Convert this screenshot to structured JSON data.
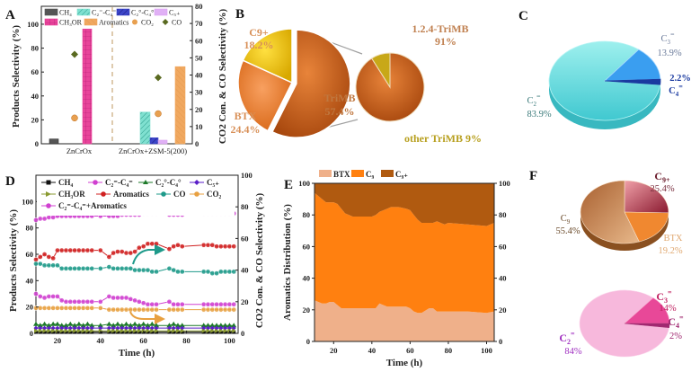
{
  "panels": {
    "A": "A",
    "B": "B",
    "C": "C",
    "D": "D",
    "E": "E",
    "F": "F"
  },
  "chart_data": [
    {
      "id": "A",
      "type": "bar",
      "categories": [
        "ZnCrOx",
        "ZnCrOx+ZSM-5(200)"
      ],
      "ylabel": "Products Selectivity (%)",
      "y2label": "CO2 Con. & CO Selectivity (%)",
      "ylim": [
        0,
        115
      ],
      "y2lim": [
        0,
        80
      ],
      "yticks": [
        "0",
        "20",
        "40",
        "60",
        "80",
        "100"
      ],
      "y2ticks": [
        "0",
        "10",
        "20",
        "30",
        "40",
        "50",
        "60",
        "70",
        "80"
      ],
      "series": [
        {
          "name": "CH4",
          "color": "#555555",
          "values": [
            4,
            0
          ]
        },
        {
          "name": "C2=-C4=",
          "color": "#7fe0d0",
          "values": [
            0,
            26.5
          ]
        },
        {
          "name": "C2°-C4°",
          "color": "#3b45c8",
          "values": [
            0,
            5
          ]
        },
        {
          "name": "C5+",
          "color": "#d9a0f0",
          "values": [
            0,
            3
          ]
        },
        {
          "name": "CH3OR",
          "color": "#e8449a",
          "values": [
            96,
            0
          ]
        },
        {
          "name": "Aromatics",
          "color": "#f0a860",
          "values": [
            0,
            64.5
          ]
        }
      ],
      "scatter_series": [
        {
          "name": "CO2",
          "color": "#e8a050",
          "axis": "right",
          "values": [
            15,
            17.5
          ]
        },
        {
          "name": "CO",
          "color": "#5a6a20",
          "axis": "right",
          "values": [
            52,
            38.5
          ]
        }
      ],
      "legend": [
        "CH4",
        "C2=-C4=",
        "C2°-C4°",
        "C5+",
        "CH3OR",
        "Aromatics",
        "CO2",
        "CO"
      ]
    },
    {
      "id": "B",
      "type": "pie",
      "title": "",
      "slices": [
        {
          "label": "TriMB",
          "value": 57.4,
          "text": "57.4%",
          "color": "#d2691e"
        },
        {
          "label": "BTX",
          "value": 24.4,
          "text": "24.4%",
          "color": "#f08838"
        },
        {
          "label": "C9+",
          "value": 18.2,
          "text": "18.2%",
          "color": "#e8c020"
        }
      ],
      "sub_pie": {
        "of": "TriMB",
        "slices": [
          {
            "label": "1.2.4-TriMB",
            "value": 91,
            "text": "91%",
            "color": "#d2691e"
          },
          {
            "label": "other TriMB",
            "value": 9,
            "text": "9%",
            "color": "#c8a818"
          }
        ]
      }
    },
    {
      "id": "C",
      "type": "pie",
      "slices": [
        {
          "label": "C2=",
          "value": 83.9,
          "text": "83.9%",
          "color": "#5fd8d8"
        },
        {
          "label": "C3=",
          "value": 13.9,
          "text": "13.9%",
          "color": "#3a9ef0"
        },
        {
          "label": "C4=",
          "value": 2.2,
          "text": "2.2%",
          "color": "#1a3aa0"
        }
      ]
    },
    {
      "id": "D",
      "type": "line",
      "xlabel": "Time (h)",
      "ylabel": "Products Selectivity (%)",
      "y2label": "CO2 Con. & CO Selectivity (%)",
      "xlim": [
        10,
        104
      ],
      "ylim": [
        0,
        120
      ],
      "y2lim": [
        0,
        100
      ],
      "xticks": [
        "20",
        "40",
        "60",
        "80",
        "100"
      ],
      "yticks": [
        "0",
        "20",
        "40",
        "60",
        "80",
        "100"
      ],
      "y2ticks": [
        "0",
        "20",
        "40",
        "60",
        "80",
        "100"
      ],
      "x": [
        10,
        12,
        14,
        16,
        18,
        20,
        22,
        24,
        26,
        28,
        30,
        32,
        34,
        36,
        40,
        44,
        46,
        48,
        50,
        52,
        54,
        56,
        58,
        60,
        62,
        64,
        66,
        72,
        74,
        76,
        78,
        88,
        90,
        92,
        94,
        96,
        98,
        100,
        102
      ],
      "series": [
        {
          "name": "CH4",
          "color": "#111111",
          "marker": "square",
          "values": [
            1,
            1,
            1,
            1,
            1,
            1,
            1,
            1,
            1,
            1,
            1,
            1,
            1,
            1,
            1,
            1,
            1,
            1,
            1,
            1,
            1,
            1,
            1,
            1,
            1,
            1,
            1,
            1,
            1,
            1,
            1,
            1,
            1,
            1,
            1,
            1,
            1,
            1,
            1
          ]
        },
        {
          "name": "C2=-C4=",
          "color": "#d040d0",
          "marker": "circle",
          "values": [
            30,
            28,
            27,
            28,
            28,
            28,
            25,
            24,
            24,
            24,
            24,
            24,
            24,
            24,
            24,
            28,
            27,
            27,
            27,
            27,
            26,
            25,
            24,
            23,
            22,
            22,
            22,
            24,
            22,
            22,
            22,
            22,
            22,
            22,
            22,
            22,
            22,
            22,
            22
          ]
        },
        {
          "name": "C2°-C4°",
          "color": "#1e7a2a",
          "marker": "triangle",
          "values": [
            7,
            6,
            7,
            6,
            7,
            7,
            6,
            6,
            7,
            6,
            7,
            6,
            7,
            6,
            6,
            7,
            6,
            7,
            6,
            7,
            6,
            7,
            6,
            7,
            6,
            7,
            6,
            6,
            7,
            6,
            6,
            6,
            6,
            6,
            6,
            6,
            6,
            6,
            6
          ]
        },
        {
          "name": "C5+",
          "color": "#5a1ec8",
          "marker": "diamond",
          "values": [
            4,
            4,
            4,
            4,
            4,
            4,
            4,
            4,
            4,
            4,
            4,
            4,
            4,
            4,
            4,
            4,
            4,
            4,
            4,
            4,
            4,
            4,
            4,
            4,
            4,
            4,
            4,
            4,
            4,
            4,
            4,
            4,
            4,
            4,
            4,
            4,
            4,
            4,
            4
          ]
        },
        {
          "name": "CH3OR",
          "color": "#8a9a30",
          "marker": "triangle-right",
          "values": [
            2,
            2,
            2,
            2,
            2,
            2,
            2,
            2,
            2,
            2,
            2,
            2,
            2,
            2,
            2,
            2,
            2,
            2,
            2,
            2,
            2,
            2,
            2,
            2,
            2,
            2,
            2,
            2,
            2,
            2,
            2,
            2,
            2,
            2,
            2,
            2,
            2,
            2,
            2
          ]
        },
        {
          "name": "Aromatics",
          "color": "#d02020",
          "marker": "circle",
          "values": [
            56,
            58,
            60,
            58,
            57,
            63,
            63,
            63,
            63,
            63,
            63,
            63,
            63,
            63,
            63,
            58,
            61,
            62,
            62,
            61,
            61,
            62,
            65,
            66,
            68,
            68,
            68,
            64,
            66,
            67,
            66,
            67,
            67,
            67,
            66,
            66,
            66,
            66,
            66
          ]
        },
        {
          "name": "CO",
          "color": "#1e9a8a",
          "axis": "right",
          "marker": "circle",
          "values": [
            44,
            44,
            43,
            43,
            43,
            43,
            41,
            41,
            41,
            41,
            41,
            41,
            41,
            41,
            41,
            42,
            41,
            41,
            41,
            41,
            41,
            40,
            40,
            40,
            40,
            39,
            39,
            41,
            40,
            39,
            39,
            39,
            39,
            38,
            38,
            39,
            39,
            39,
            39
          ]
        },
        {
          "name": "CO2",
          "color": "#e8a040",
          "axis": "right",
          "marker": "circle",
          "values": [
            16,
            16,
            16,
            16,
            16,
            16,
            16,
            16,
            16,
            16,
            16,
            16,
            16,
            16,
            16,
            15,
            15,
            15,
            15,
            15,
            15,
            15,
            15,
            15,
            15,
            15,
            15,
            15,
            15,
            15,
            15,
            15,
            15,
            15,
            15,
            15,
            15,
            15,
            15
          ]
        },
        {
          "name": "C2=-C4=+Aromatics",
          "color": "#d040d0",
          "marker": "circle",
          "values": [
            86,
            87,
            87,
            88,
            88,
            89,
            89,
            89,
            89,
            89,
            89,
            89,
            89,
            89,
            89,
            89,
            89,
            89,
            90,
            90,
            90,
            90,
            90,
            91,
            91,
            91,
            91,
            90,
            90,
            90,
            90,
            91,
            91,
            91,
            91,
            91,
            91,
            91,
            91
          ]
        }
      ],
      "legend": [
        "CH4",
        "C2=-C4=",
        "C2°-C4°",
        "C5+",
        "CH3OR",
        "Aromatics",
        "CO",
        "CO2",
        "C2=-C4=+Aromatics"
      ]
    },
    {
      "id": "E",
      "type": "area",
      "xlabel": "Time (h)",
      "ylabel": "Aromatics Distribution (%)",
      "xlim": [
        10,
        104
      ],
      "ylim": [
        0,
        100
      ],
      "xticks": [
        "20",
        "40",
        "60",
        "80",
        "100"
      ],
      "yticks": [
        "0",
        "20",
        "40",
        "60",
        "80",
        "100"
      ],
      "y2ticks": [
        "0",
        "20",
        "40",
        "60",
        "80",
        "100"
      ],
      "x": [
        10,
        12,
        14,
        16,
        18,
        20,
        22,
        24,
        26,
        30,
        36,
        38,
        40,
        42,
        44,
        48,
        50,
        54,
        58,
        60,
        62,
        64,
        66,
        70,
        72,
        74,
        78,
        80,
        90,
        100,
        104
      ],
      "series": [
        {
          "name": "BTX",
          "color": "#efb08a",
          "values": [
            26,
            25,
            24,
            24,
            25,
            25,
            23,
            21,
            21,
            21,
            21,
            21,
            21,
            21,
            24,
            22,
            22,
            22,
            22,
            21,
            19,
            18,
            18,
            21,
            21,
            19,
            19,
            19,
            19,
            18,
            19
          ]
        },
        {
          "name": "C9",
          "color": "#ff8010",
          "values": [
            68,
            67,
            66,
            64,
            63,
            63,
            64,
            63,
            60,
            58,
            58,
            58,
            58,
            59,
            58,
            62,
            63,
            63,
            62,
            62,
            61,
            59,
            57,
            54,
            54,
            57,
            55,
            56,
            55,
            55,
            56
          ]
        },
        {
          "name": "C9+",
          "color": "#b05a10",
          "values": [
            6,
            8,
            10,
            12,
            12,
            12,
            13,
            16,
            19,
            21,
            21,
            21,
            21,
            20,
            18,
            16,
            15,
            15,
            16,
            17,
            20,
            23,
            25,
            25,
            25,
            24,
            26,
            25,
            26,
            27,
            25
          ]
        }
      ],
      "legend": [
        "BTX",
        "C9",
        "C9+"
      ]
    },
    {
      "id": "F",
      "type": "pie",
      "pies": [
        {
          "slices": [
            {
              "label": "C9",
              "value": 55.4,
              "text": "55.4%",
              "color": "#c8864a"
            },
            {
              "label": "C9+",
              "value": 25.4,
              "text": "25.4%",
              "color": "#b84860"
            },
            {
              "label": "BTX",
              "value": 19.2,
              "text": "19.2%",
              "color": "#f08830"
            }
          ]
        },
        {
          "slices": [
            {
              "label": "C2=",
              "value": 84,
              "text": "84%",
              "color": "#f5b0d8"
            },
            {
              "label": "C3=",
              "value": 14,
              "text": "14%",
              "color": "#e84898"
            },
            {
              "label": "C4=",
              "value": 2,
              "text": "2%",
              "color": "#a02870"
            }
          ]
        }
      ]
    }
  ]
}
